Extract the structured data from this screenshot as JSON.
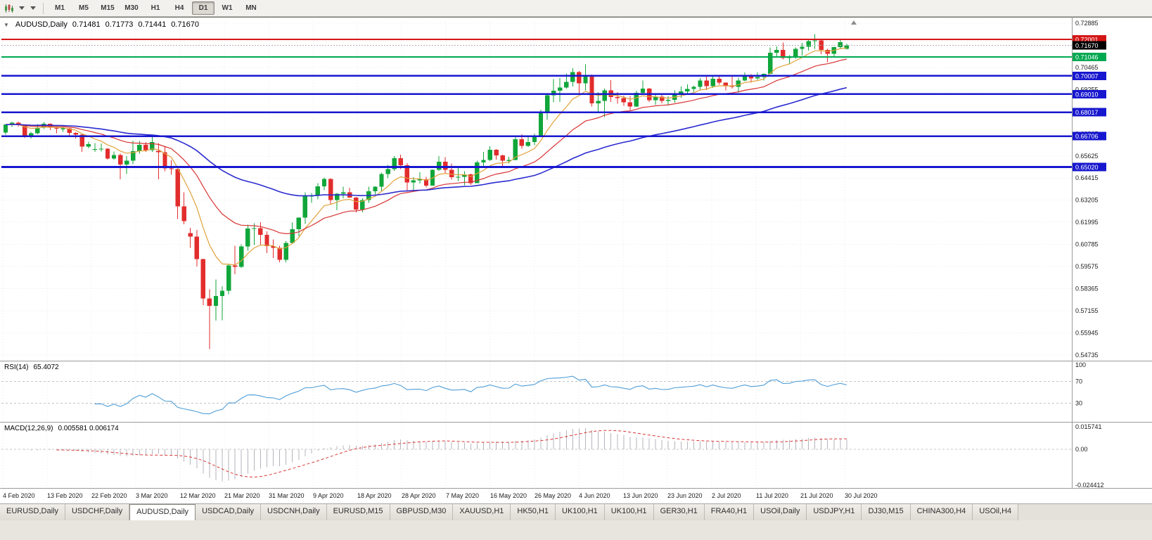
{
  "toolbar": {
    "timeframes": [
      "M1",
      "M5",
      "M15",
      "M30",
      "H1",
      "H4",
      "D1",
      "W1",
      "MN"
    ],
    "active_timeframe": "D1"
  },
  "chart": {
    "collapse_arrow": "▼",
    "symbol_title": "AUDUSD,Daily",
    "ohlc": {
      "open": "0.71481",
      "high": "0.71773",
      "low": "0.71441",
      "close": "0.71670"
    },
    "bid_label": "0.71670",
    "bid_price": 0.7167,
    "y_axis_ticks": [
      "0.72885",
      "0.71675",
      "0.70465",
      "0.69255",
      "0.68045",
      "0.66835",
      "0.65625",
      "0.64415",
      "0.63205",
      "0.61995",
      "0.60785",
      "0.59575",
      "0.58365",
      "0.57155",
      "0.55945",
      "0.54735"
    ],
    "x_axis_labels": [
      "4 Feb 2020",
      "13 Feb 2020",
      "22 Feb 2020",
      "3 Mar 2020",
      "12 Mar 2020",
      "21 Mar 2020",
      "31 Mar 2020",
      "9 Apr 2020",
      "18 Apr 2020",
      "28 Apr 2020",
      "7 May 2020",
      "16 May 2020",
      "26 May 2020",
      "4 Jun 2020",
      "13 Jun 2020",
      "23 Jun 2020",
      "2 Jul 2020",
      "11 Jul 2020",
      "21 Jul 2020",
      "30 Jul 2020"
    ],
    "levels": [
      {
        "label": "0.72001",
        "price": 0.72001,
        "color": "#d41616",
        "thickness": 1.6
      },
      {
        "label": "0.71046",
        "price": 0.71046,
        "color": "#00a850",
        "thickness": 2
      },
      {
        "label": "0.70007",
        "price": 0.70007,
        "color": "#1717cf",
        "thickness": 2.6
      },
      {
        "label": "0.69010",
        "price": 0.6901,
        "color": "#1717cf",
        "thickness": 2.6
      },
      {
        "label": "0.68017",
        "price": 0.68017,
        "color": "#1717cf",
        "thickness": 2.6
      },
      {
        "label": "0.66706",
        "price": 0.66706,
        "color": "#1717cf",
        "thickness": 2.6
      },
      {
        "label": "0.65020",
        "price": 0.6502,
        "color": "#1717cf",
        "thickness": 2.6
      }
    ]
  },
  "rsi_panel": {
    "name": "RSI(14)",
    "value": "65.4072",
    "period": 14,
    "ticks": [
      "100",
      "70",
      "30"
    ],
    "tick_values": [
      100,
      70,
      30
    ]
  },
  "macd_panel": {
    "name": "MACD(12,26,9)",
    "values": "0.005581 0.006174",
    "ticks": [
      "0.015741",
      "0.00",
      "-0.024412"
    ],
    "tick_values": [
      0.015741,
      0,
      -0.024412
    ]
  },
  "tabs": {
    "active": "AUDUSD,Daily",
    "items": [
      "EURUSD,Daily",
      "USDCHF,Daily",
      "AUDUSD,Daily",
      "USDCAD,Daily",
      "USDCNH,Daily",
      "EURUSD,M15",
      "GBPUSD,M30",
      "XAUUSD,H1",
      "HK50,H1",
      "UK100,H1",
      "UK100,H1",
      "GER30,H1",
      "FRA40,H1",
      "USOil,Daily",
      "USDJPY,H1",
      "DJ30,M15",
      "CHINA300,H4",
      "USOil,H4"
    ]
  },
  "colors": {
    "up": "#10a63a",
    "down": "#e22d2d",
    "ma_fast": "#e0a23a",
    "ma_mid": "#d93434",
    "ma_slow": "#2b2bd0",
    "rsi_line": "#4f9ed8",
    "macd_hist": "#b4b4bc",
    "macd_signal": "#d93434",
    "grid": "#e9e9e9",
    "bid_box": "#000000"
  },
  "chart_data": {
    "type": "candlestick",
    "title": "AUDUSD,Daily",
    "symbol": "AUDUSD",
    "timeframe": "D1",
    "ylim": [
      0.54735,
      0.72885
    ],
    "ohlc_current": [
      0.71481,
      0.71773,
      0.71441,
      0.7167
    ],
    "moving_averages": [
      {
        "period": 8,
        "method": "ema",
        "color_key": "ma_fast"
      },
      {
        "period": 21,
        "method": "ema",
        "color_key": "ma_mid"
      },
      {
        "period": 55,
        "method": "ema",
        "color_key": "ma_slow"
      }
    ],
    "indicators": {
      "rsi_period": 14,
      "macd": [
        12,
        26,
        9
      ]
    },
    "candles": [
      [
        0.669,
        0.6736,
        0.6678,
        0.6734
      ],
      [
        0.6734,
        0.675,
        0.6722,
        0.6745
      ],
      [
        0.6745,
        0.675,
        0.6724,
        0.673
      ],
      [
        0.673,
        0.6733,
        0.6662,
        0.6673
      ],
      [
        0.6673,
        0.6695,
        0.6657,
        0.6687
      ],
      [
        0.6687,
        0.6736,
        0.668,
        0.6718
      ],
      [
        0.6718,
        0.6748,
        0.671,
        0.6738
      ],
      [
        0.6738,
        0.674,
        0.6703,
        0.6717
      ],
      [
        0.6717,
        0.6723,
        0.6687,
        0.6712
      ],
      [
        0.6712,
        0.6722,
        0.6695,
        0.6713
      ],
      [
        0.6713,
        0.6715,
        0.6665,
        0.6688
      ],
      [
        0.6688,
        0.6692,
        0.6657,
        0.6679
      ],
      [
        0.6679,
        0.6681,
        0.6585,
        0.6614
      ],
      [
        0.6614,
        0.664,
        0.6604,
        0.6627
      ],
      [
        0.66,
        0.6633,
        0.6585,
        0.6601
      ],
      [
        0.6601,
        0.663,
        0.6586,
        0.6602
      ],
      [
        0.6602,
        0.6606,
        0.6542,
        0.6549
      ],
      [
        0.6549,
        0.6586,
        0.6543,
        0.6567
      ],
      [
        0.6567,
        0.6575,
        0.6434,
        0.6515
      ],
      [
        0.6515,
        0.6562,
        0.6463,
        0.6537
      ],
      [
        0.6537,
        0.6646,
        0.6518,
        0.6589
      ],
      [
        0.6589,
        0.6645,
        0.6576,
        0.6624
      ],
      [
        0.6624,
        0.6638,
        0.6585,
        0.6594
      ],
      [
        0.6594,
        0.6668,
        0.6585,
        0.6639
      ],
      [
        0.659,
        0.6633,
        0.6434,
        0.6583
      ],
      [
        0.6583,
        0.6618,
        0.6479,
        0.6495
      ],
      [
        0.6495,
        0.654,
        0.6459,
        0.649
      ],
      [
        0.649,
        0.6493,
        0.6217,
        0.6286
      ],
      [
        0.6286,
        0.6364,
        0.6188,
        0.6205
      ],
      [
        0.614,
        0.617,
        0.606,
        0.6122
      ],
      [
        0.6122,
        0.6157,
        0.5958,
        0.5998
      ],
      [
        0.5998,
        0.6,
        0.5747,
        0.5782
      ],
      [
        0.5782,
        0.5832,
        0.5506,
        0.5742
      ],
      [
        0.5742,
        0.5887,
        0.5662,
        0.5796
      ],
      [
        0.5796,
        0.585,
        0.5664,
        0.5825
      ],
      [
        0.5825,
        0.5973,
        0.5805,
        0.5963
      ],
      [
        0.5963,
        0.6072,
        0.5916,
        0.5955
      ],
      [
        0.5955,
        0.6078,
        0.5951,
        0.6068
      ],
      [
        0.6068,
        0.6187,
        0.6045,
        0.6165
      ],
      [
        0.6165,
        0.6195,
        0.6076,
        0.6168
      ],
      [
        0.6168,
        0.62,
        0.6073,
        0.6131
      ],
      [
        0.6131,
        0.6151,
        0.603,
        0.607
      ],
      [
        0.607,
        0.6105,
        0.6003,
        0.606
      ],
      [
        0.606,
        0.6072,
        0.598,
        0.5995
      ],
      [
        0.5995,
        0.6096,
        0.5981,
        0.6087
      ],
      [
        0.6087,
        0.6199,
        0.6085,
        0.6161
      ],
      [
        0.6161,
        0.6227,
        0.6124,
        0.6225
      ],
      [
        0.6225,
        0.6364,
        0.619,
        0.6345
      ],
      [
        0.6345,
        0.636,
        0.6305,
        0.6345
      ],
      [
        0.6345,
        0.6413,
        0.6325,
        0.6397
      ],
      [
        0.6397,
        0.6445,
        0.6376,
        0.6437
      ],
      [
        0.6437,
        0.6441,
        0.6299,
        0.6322
      ],
      [
        0.6322,
        0.636,
        0.6265,
        0.6355
      ],
      [
        0.6355,
        0.6395,
        0.633,
        0.6363
      ],
      [
        0.6363,
        0.6389,
        0.6332,
        0.6334
      ],
      [
        0.6334,
        0.6339,
        0.6253,
        0.627
      ],
      [
        0.627,
        0.633,
        0.6254,
        0.6322
      ],
      [
        0.6322,
        0.6394,
        0.6306,
        0.637
      ],
      [
        0.637,
        0.6397,
        0.6352,
        0.6394
      ],
      [
        0.6394,
        0.6472,
        0.6372,
        0.6463
      ],
      [
        0.6463,
        0.6513,
        0.6441,
        0.649
      ],
      [
        0.649,
        0.6562,
        0.648,
        0.655
      ],
      [
        0.655,
        0.657,
        0.649,
        0.6511
      ],
      [
        0.6511,
        0.6524,
        0.6372,
        0.6417
      ],
      [
        0.6417,
        0.6447,
        0.6373,
        0.6428
      ],
      [
        0.6428,
        0.6473,
        0.6412,
        0.6434
      ],
      [
        0.6434,
        0.6448,
        0.639,
        0.64
      ],
      [
        0.64,
        0.6489,
        0.64,
        0.6486
      ],
      [
        0.6486,
        0.6561,
        0.648,
        0.6531
      ],
      [
        0.6531,
        0.6556,
        0.6469,
        0.6486
      ],
      [
        0.6486,
        0.6522,
        0.6432,
        0.6446
      ],
      [
        0.6446,
        0.6506,
        0.6425,
        0.6449
      ],
      [
        0.6449,
        0.6478,
        0.6402,
        0.6462
      ],
      [
        0.6462,
        0.6466,
        0.6403,
        0.6414
      ],
      [
        0.6414,
        0.6536,
        0.6414,
        0.6527
      ],
      [
        0.6527,
        0.6585,
        0.6506,
        0.654
      ],
      [
        0.654,
        0.6616,
        0.6535,
        0.6597
      ],
      [
        0.6597,
        0.66,
        0.6542,
        0.6566
      ],
      [
        0.6566,
        0.657,
        0.6506,
        0.6536
      ],
      [
        0.6536,
        0.6557,
        0.6522,
        0.654
      ],
      [
        0.654,
        0.6675,
        0.6539,
        0.6654
      ],
      [
        0.6654,
        0.668,
        0.6602,
        0.6617
      ],
      [
        0.6617,
        0.6666,
        0.6611,
        0.6638
      ],
      [
        0.6638,
        0.6684,
        0.6622,
        0.6667
      ],
      [
        0.6667,
        0.6815,
        0.6667,
        0.6797
      ],
      [
        0.6797,
        0.69,
        0.676,
        0.6895
      ],
      [
        0.6895,
        0.6983,
        0.6855,
        0.692
      ],
      [
        0.692,
        0.6988,
        0.6858,
        0.6937
      ],
      [
        0.6937,
        0.7013,
        0.6931,
        0.6968
      ],
      [
        0.6968,
        0.7043,
        0.6943,
        0.7021
      ],
      [
        0.7021,
        0.7027,
        0.6901,
        0.696
      ],
      [
        0.696,
        0.7063,
        0.6922,
        0.7
      ],
      [
        0.7,
        0.7008,
        0.6832,
        0.685
      ],
      [
        0.685,
        0.6912,
        0.68,
        0.6863
      ],
      [
        0.6863,
        0.6931,
        0.6776,
        0.6921
      ],
      [
        0.6921,
        0.6977,
        0.6858,
        0.6885
      ],
      [
        0.6885,
        0.6911,
        0.6848,
        0.6879
      ],
      [
        0.6879,
        0.6893,
        0.6837,
        0.6855
      ],
      [
        0.6855,
        0.689,
        0.681,
        0.6832
      ],
      [
        0.6832,
        0.692,
        0.683,
        0.6908
      ],
      [
        0.6908,
        0.6976,
        0.6897,
        0.6931
      ],
      [
        0.6931,
        0.6935,
        0.6857,
        0.6867
      ],
      [
        0.6867,
        0.6897,
        0.6842,
        0.6887
      ],
      [
        0.6887,
        0.6899,
        0.6851,
        0.6864
      ],
      [
        0.6864,
        0.6889,
        0.6838,
        0.6869
      ],
      [
        0.6869,
        0.6921,
        0.6854,
        0.6904
      ],
      [
        0.6904,
        0.6942,
        0.6881,
        0.6916
      ],
      [
        0.6916,
        0.6954,
        0.6904,
        0.6928
      ],
      [
        0.6928,
        0.6946,
        0.6914,
        0.694
      ],
      [
        0.694,
        0.6988,
        0.6922,
        0.6975
      ],
      [
        0.6975,
        0.6998,
        0.6923,
        0.6945
      ],
      [
        0.6945,
        0.6999,
        0.6934,
        0.6985
      ],
      [
        0.6985,
        0.6998,
        0.6952,
        0.6963
      ],
      [
        0.6963,
        0.6966,
        0.6921,
        0.6948
      ],
      [
        0.6948,
        0.7,
        0.6931,
        0.694
      ],
      [
        0.694,
        0.699,
        0.6909,
        0.6976
      ],
      [
        0.6976,
        0.7019,
        0.6972,
        0.7006
      ],
      [
        0.7006,
        0.701,
        0.6963,
        0.6986
      ],
      [
        0.6986,
        0.7019,
        0.6979,
        0.6995
      ],
      [
        0.6995,
        0.7013,
        0.6975,
        0.7012
      ],
      [
        0.7012,
        0.7155,
        0.701,
        0.7127
      ],
      [
        0.7127,
        0.7162,
        0.7108,
        0.7142
      ],
      [
        0.7142,
        0.7183,
        0.709,
        0.7098
      ],
      [
        0.7098,
        0.7114,
        0.7064,
        0.7103
      ],
      [
        0.7103,
        0.7156,
        0.7095,
        0.7149
      ],
      [
        0.7149,
        0.718,
        0.7112,
        0.7159
      ],
      [
        0.7159,
        0.7197,
        0.7138,
        0.719
      ],
      [
        0.719,
        0.7228,
        0.7148,
        0.7195
      ],
      [
        0.7195,
        0.72,
        0.7119,
        0.7143
      ],
      [
        0.7143,
        0.7149,
        0.7076,
        0.7121
      ],
      [
        0.7121,
        0.7159,
        0.7107,
        0.7157
      ],
      [
        0.7157,
        0.7197,
        0.7147,
        0.7185
      ],
      [
        0.71481,
        0.71773,
        0.71441,
        0.7167
      ]
    ]
  }
}
